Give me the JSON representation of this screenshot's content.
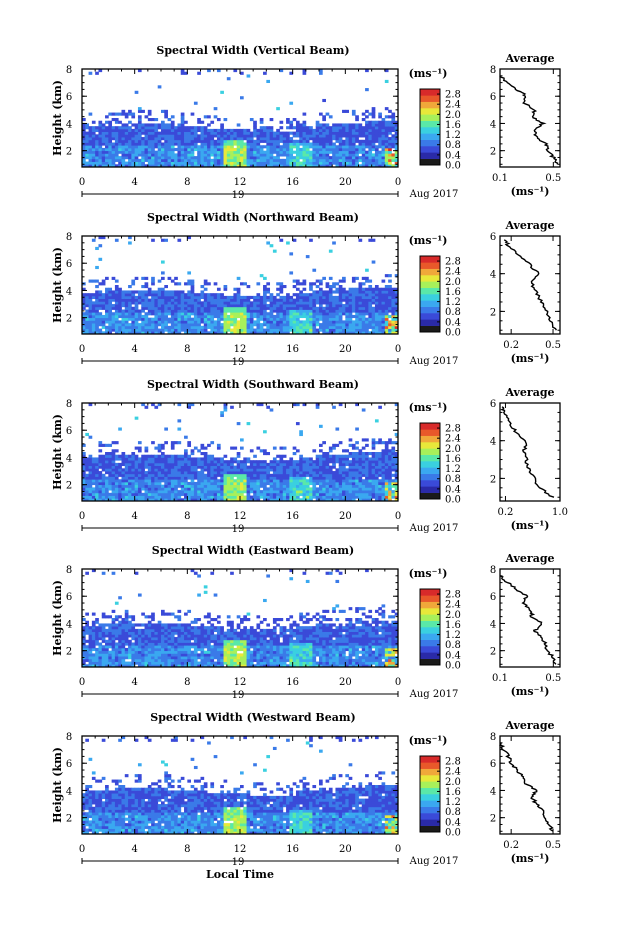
{
  "chart_data": [
    {
      "type": "heatmap",
      "title": "Spectral Width (Vertical Beam)",
      "ylabel": "Height (km)",
      "ylim": [
        0.8,
        8
      ],
      "y_ticks": [
        "2",
        "4",
        "6",
        "8"
      ],
      "x_ticks": [
        "0",
        "4",
        "8",
        "12",
        "16",
        "20",
        "0"
      ],
      "xlim": [
        0,
        24
      ],
      "day_label": "19",
      "month_label": "Aug 2017",
      "colorbar": {
        "unit": "(ms⁻¹)",
        "labels": [
          "0.0",
          "0.4",
          "0.8",
          "1.2",
          "1.6",
          "2.0",
          "2.4",
          "2.8"
        ],
        "range": [
          0,
          3.0
        ]
      },
      "cloud_top_km": 3.6,
      "average_profile": {
        "title": "Average",
        "xlabel": "(ms⁻¹)",
        "x_ticks": [
          "0.1",
          "0.5"
        ],
        "xlim": [
          0.1,
          0.55
        ],
        "ylim": [
          0.8,
          8
        ],
        "y_ticks": [
          "2",
          "4",
          "6",
          "8"
        ],
        "heights": [
          1.0,
          1.5,
          2.0,
          2.5,
          3.0,
          3.5,
          4.0,
          4.5,
          5.0,
          5.5,
          6.0,
          6.5,
          7.0,
          7.5
        ],
        "values": [
          0.53,
          0.5,
          0.46,
          0.44,
          0.38,
          0.35,
          0.42,
          0.34,
          0.36,
          0.28,
          0.3,
          0.22,
          0.16,
          0.1
        ]
      }
    },
    {
      "type": "heatmap",
      "title": "Spectral Width (Northward Beam)",
      "ylabel": "Height (km)",
      "ylim": [
        0.8,
        8
      ],
      "y_ticks": [
        "2",
        "4",
        "6",
        "8"
      ],
      "x_ticks": [
        "0",
        "4",
        "8",
        "12",
        "16",
        "20",
        "0"
      ],
      "xlim": [
        0,
        24
      ],
      "day_label": "19",
      "month_label": "Aug 2017",
      "colorbar": {
        "unit": "(ms⁻¹)",
        "labels": [
          "0.0",
          "0.4",
          "0.8",
          "1.2",
          "1.6",
          "2.0",
          "2.4",
          "2.8"
        ],
        "range": [
          0,
          3.0
        ]
      },
      "cloud_top_km": 3.7,
      "average_profile": {
        "title": "Average",
        "xlabel": "(ms⁻¹)",
        "x_ticks": [
          "0.2",
          "0.5"
        ],
        "xlim": [
          0.12,
          0.55
        ],
        "ylim": [
          0.8,
          6
        ],
        "y_ticks": [
          "2",
          "4",
          "6"
        ],
        "heights": [
          1.0,
          1.5,
          2.0,
          2.5,
          3.0,
          3.5,
          4.0,
          4.5,
          5.0,
          5.5,
          5.8
        ],
        "values": [
          0.52,
          0.48,
          0.45,
          0.42,
          0.38,
          0.35,
          0.4,
          0.33,
          0.25,
          0.18,
          0.15
        ]
      }
    },
    {
      "type": "heatmap",
      "title": "Spectral Width (Southward Beam)",
      "ylabel": "Height (km)",
      "ylim": [
        0.8,
        8
      ],
      "y_ticks": [
        "2",
        "4",
        "6",
        "8"
      ],
      "x_ticks": [
        "0",
        "4",
        "8",
        "12",
        "16",
        "20",
        "0"
      ],
      "xlim": [
        0,
        24
      ],
      "day_label": "19",
      "month_label": "Aug 2017",
      "colorbar": {
        "unit": "(ms⁻¹)",
        "labels": [
          "0.0",
          "0.4",
          "0.8",
          "1.2",
          "1.6",
          "2.0",
          "2.4",
          "2.8"
        ],
        "range": [
          0,
          3.0
        ]
      },
      "cloud_top_km": 3.9,
      "average_profile": {
        "title": "Average",
        "xlabel": "(ms⁻¹)",
        "x_ticks": [
          "0.2",
          "1.0"
        ],
        "xlim": [
          0.12,
          1.0
        ],
        "ylim": [
          0.8,
          6
        ],
        "y_ticks": [
          "2",
          "4",
          "6"
        ],
        "heights": [
          1.0,
          1.5,
          2.0,
          2.5,
          3.0,
          3.5,
          4.0,
          4.5,
          5.0,
          5.5,
          5.8
        ],
        "values": [
          0.9,
          0.7,
          0.62,
          0.55,
          0.5,
          0.48,
          0.5,
          0.35,
          0.25,
          0.18,
          0.15
        ]
      }
    },
    {
      "type": "heatmap",
      "title": "Spectral Width (Eastward Beam)",
      "ylabel": "Height (km)",
      "ylim": [
        0.8,
        8
      ],
      "y_ticks": [
        "2",
        "4",
        "6",
        "8"
      ],
      "x_ticks": [
        "0",
        "4",
        "8",
        "12",
        "16",
        "20",
        "0"
      ],
      "xlim": [
        0,
        24
      ],
      "day_label": "19",
      "month_label": "Aug 2017",
      "colorbar": {
        "unit": "(ms⁻¹)",
        "labels": [
          "0.0",
          "0.4",
          "0.8",
          "1.2",
          "1.6",
          "2.0",
          "2.4",
          "2.8"
        ],
        "range": [
          0,
          3.0
        ]
      },
      "cloud_top_km": 3.7,
      "average_profile": {
        "title": "Average",
        "xlabel": "(ms⁻¹)",
        "x_ticks": [
          "0.1",
          "0.5"
        ],
        "xlim": [
          0.1,
          0.55
        ],
        "ylim": [
          0.8,
          8
        ],
        "y_ticks": [
          "2",
          "4",
          "6",
          "8"
        ],
        "heights": [
          1.0,
          1.5,
          2.0,
          2.5,
          3.0,
          3.5,
          4.0,
          4.5,
          5.0,
          5.5,
          6.0,
          6.5,
          7.0,
          7.5
        ],
        "values": [
          0.52,
          0.5,
          0.45,
          0.44,
          0.4,
          0.36,
          0.42,
          0.34,
          0.33,
          0.27,
          0.3,
          0.22,
          0.16,
          0.1
        ]
      }
    },
    {
      "type": "heatmap",
      "title": "Spectral Width (Westward Beam)",
      "ylabel": "Height (km)",
      "ylim": [
        0.8,
        8
      ],
      "y_ticks": [
        "2",
        "4",
        "6",
        "8"
      ],
      "x_ticks": [
        "0",
        "4",
        "8",
        "12",
        "16",
        "20",
        "0"
      ],
      "xlim": [
        0,
        24
      ],
      "day_label": "19",
      "month_label": "Aug 2017",
      "colorbar": {
        "unit": "(ms⁻¹)",
        "labels": [
          "0.0",
          "0.4",
          "0.8",
          "1.2",
          "1.6",
          "2.0",
          "2.4",
          "2.8"
        ],
        "range": [
          0,
          3.0
        ]
      },
      "cloud_top_km": 3.8,
      "average_profile": {
        "title": "Average",
        "xlabel": "(ms⁻¹)",
        "x_ticks": [
          "0.2",
          "0.5"
        ],
        "xlim": [
          0.12,
          0.55
        ],
        "ylim": [
          0.8,
          8
        ],
        "y_ticks": [
          "2",
          "4",
          "6",
          "8"
        ],
        "heights": [
          1.0,
          1.5,
          2.0,
          2.5,
          3.0,
          3.5,
          4.0,
          4.5,
          5.0,
          5.5,
          6.0,
          6.5,
          7.0,
          7.5
        ],
        "values": [
          0.5,
          0.47,
          0.44,
          0.42,
          0.38,
          0.35,
          0.38,
          0.3,
          0.28,
          0.24,
          0.2,
          0.18,
          0.15,
          0.12
        ]
      }
    }
  ],
  "bottom_axis_label": "Local Time",
  "colormap": [
    "#1a1a1a",
    "#2a2aa8",
    "#3a4ad8",
    "#3a7ae8",
    "#3aa8f0",
    "#3ad0e0",
    "#5ae8a8",
    "#a8f05a",
    "#e8e83a",
    "#f0a83a",
    "#e8582a",
    "#d82a2a"
  ]
}
